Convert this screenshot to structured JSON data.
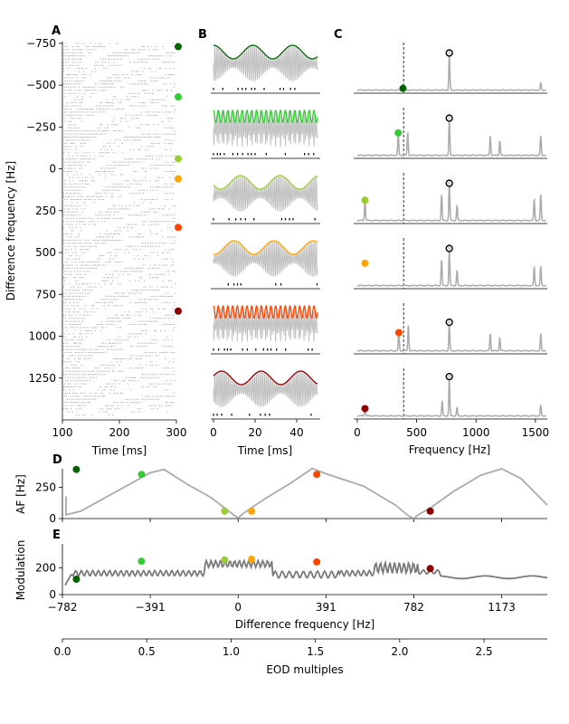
{
  "panel_labels": [
    "A",
    "B",
    "C",
    "D",
    "E"
  ],
  "colors": {
    "f1": "#006400",
    "f2": "#32cd32",
    "f3": "#9acd32",
    "f4": "#ffa500",
    "f5": "#ff4500",
    "f6": "#8b0000",
    "grey": "#aaaaaa",
    "dark_grey": "#7a7a7a"
  },
  "chart_data": [
    {
      "id": "A",
      "type": "scatter",
      "title": "",
      "xlabel": "Time [ms]",
      "ylabel": "Difference frequency [Hz]",
      "xlim": [
        100,
        300
      ],
      "ylim": [
        1500,
        -760
      ],
      "x_ticks": [
        "100",
        "200",
        "300"
      ],
      "y_ticks": [
        "−750",
        "−500",
        "−250",
        "0",
        "250",
        "500",
        "750",
        "1000",
        "1250"
      ],
      "y_tick_values": [
        -750,
        -500,
        -250,
        0,
        250,
        500,
        750,
        1000,
        1250
      ],
      "marker_df": [
        -730,
        -430,
        -60,
        60,
        350,
        850
      ],
      "description_values": "raster of spike trains across difference frequencies"
    },
    {
      "id": "B",
      "type": "line",
      "title": "",
      "xlabel": "Time [ms]",
      "xlim": [
        -2,
        50
      ],
      "x_ticks": [
        "0",
        "20",
        "40"
      ],
      "rows": [
        {
          "color": "f1",
          "df": -730,
          "envelope": "slow sinusoid"
        },
        {
          "color": "f2",
          "df": -430,
          "envelope": "fast oscillation"
        },
        {
          "color": "f3",
          "df": -60,
          "envelope": "slow sinusoid"
        },
        {
          "color": "f4",
          "df": 60,
          "envelope": "slow sinusoid"
        },
        {
          "color": "f5",
          "df": 350,
          "envelope": "fast oscillation"
        },
        {
          "color": "f6",
          "df": 850,
          "envelope": "slow sinusoid"
        }
      ]
    },
    {
      "id": "C",
      "type": "line",
      "title": "",
      "xlabel": "Frequency [Hz]",
      "xlim": [
        -30,
        1600
      ],
      "x_ticks": [
        "0",
        "500",
        "1000",
        "1500"
      ],
      "dashed_x": 390,
      "eod_peak_x": 775,
      "rows": [
        {
          "color": "f1",
          "marker_x": 385,
          "marker_level": 0.07,
          "peaks": [
            [
              775,
              0.85
            ],
            [
              1545,
              0.18
            ]
          ]
        },
        {
          "color": "f2",
          "marker_x": 345,
          "marker_level": 0.55,
          "peaks": [
            [
              345,
              0.5
            ],
            [
              425,
              0.55
            ],
            [
              775,
              0.85
            ],
            [
              1120,
              0.45
            ],
            [
              1200,
              0.35
            ],
            [
              1545,
              0.45
            ]
          ]
        },
        {
          "color": "f3",
          "marker_x": 65,
          "marker_level": 0.5,
          "peaks": [
            [
              65,
              0.5
            ],
            [
              710,
              0.6
            ],
            [
              775,
              0.85
            ],
            [
              840,
              0.35
            ],
            [
              1490,
              0.5
            ],
            [
              1545,
              0.6
            ]
          ]
        },
        {
          "color": "f4",
          "marker_x": 65,
          "marker_level": 0.55,
          "peaks": [
            [
              710,
              0.6
            ],
            [
              775,
              0.85
            ],
            [
              840,
              0.35
            ],
            [
              1490,
              0.45
            ],
            [
              1545,
              0.45
            ]
          ]
        },
        {
          "color": "f5",
          "marker_x": 350,
          "marker_level": 0.45,
          "peaks": [
            [
              350,
              0.45
            ],
            [
              430,
              0.6
            ],
            [
              775,
              0.65
            ],
            [
              1120,
              0.4
            ],
            [
              1200,
              0.3
            ],
            [
              1545,
              0.4
            ]
          ]
        },
        {
          "color": "f6",
          "marker_x": 65,
          "marker_level": 0.2,
          "peaks": [
            [
              65,
              0.2
            ],
            [
              715,
              0.35
            ],
            [
              775,
              0.9
            ],
            [
              840,
              0.2
            ],
            [
              1545,
              0.25
            ]
          ]
        }
      ]
    },
    {
      "id": "D",
      "type": "line",
      "title": "",
      "ylabel": "AF [Hz]",
      "xlim": [
        -782,
        1376
      ],
      "ylim": [
        0,
        400
      ],
      "y_ticks": [
        "0",
        "250"
      ],
      "y_tick_values": [
        0,
        250
      ],
      "points": [
        {
          "x": -720,
          "y": 395,
          "color": "f1"
        },
        {
          "x": -430,
          "y": 355,
          "color": "f2"
        },
        {
          "x": -60,
          "y": 60,
          "color": "f3"
        },
        {
          "x": 60,
          "y": 60,
          "color": "f4"
        },
        {
          "x": 350,
          "y": 355,
          "color": "f5"
        },
        {
          "x": 855,
          "y": 60,
          "color": "f6"
        }
      ]
    },
    {
      "id": "E",
      "type": "line",
      "title": "",
      "xlabel": "Difference frequency [Hz]",
      "ylabel": "Modulation",
      "xlim": [
        -782,
        1376
      ],
      "ylim": [
        0,
        380
      ],
      "x_ticks": [
        "−782",
        "−391",
        "0",
        "391",
        "782",
        "1173"
      ],
      "x_tick_values": [
        -782,
        -391,
        0,
        391,
        782,
        1173
      ],
      "y_ticks": [
        "0",
        "200"
      ],
      "y_tick_values": [
        0,
        200
      ],
      "points": [
        {
          "x": -720,
          "y": 115,
          "color": "f1"
        },
        {
          "x": -430,
          "y": 250,
          "color": "f2"
        },
        {
          "x": -60,
          "y": 260,
          "color": "f3"
        },
        {
          "x": 60,
          "y": 265,
          "color": "f4"
        },
        {
          "x": 350,
          "y": 245,
          "color": "f5"
        },
        {
          "x": 855,
          "y": 195,
          "color": "f6"
        }
      ]
    },
    {
      "id": "EOD",
      "type": "axis",
      "xlabel": "EOD multiples",
      "xlim": [
        0,
        2.875
      ],
      "x_ticks": [
        "0.0",
        "0.5",
        "1.0",
        "1.5",
        "2.0",
        "2.5"
      ],
      "x_tick_values": [
        0,
        0.5,
        1.0,
        1.5,
        2.0,
        2.5
      ]
    }
  ]
}
